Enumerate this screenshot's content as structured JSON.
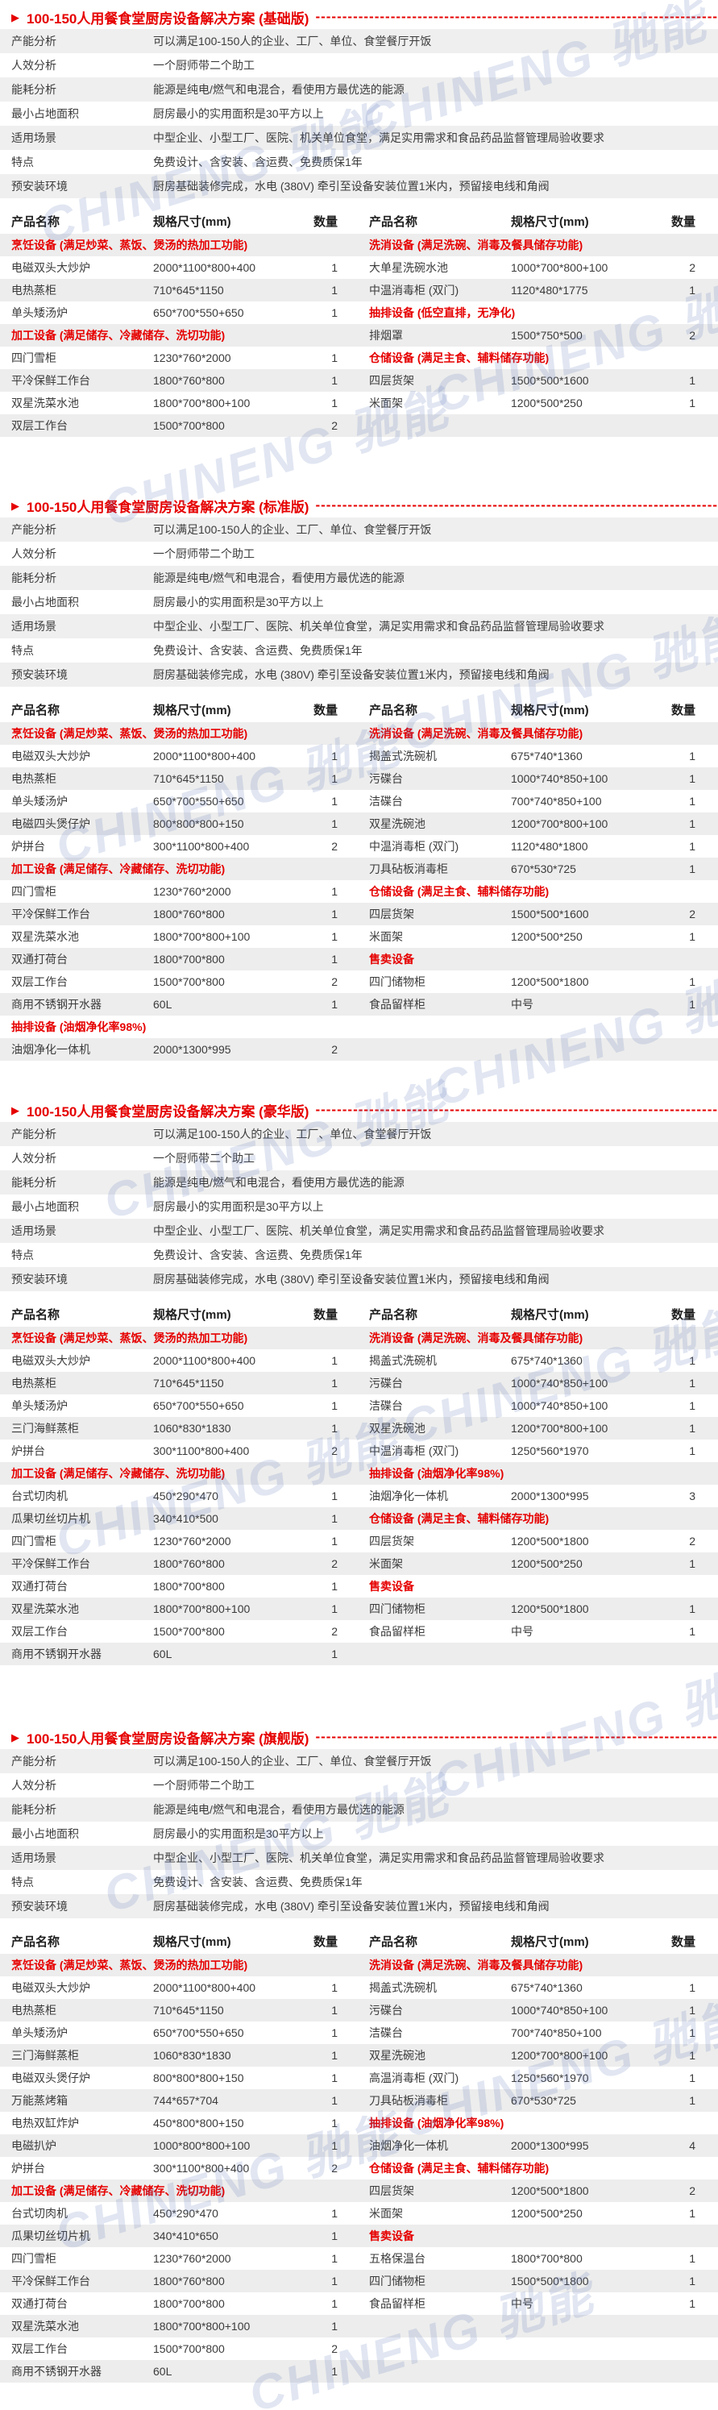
{
  "watermark": {
    "text": "CHINENG 驰能",
    "color": "#5a73b9"
  },
  "title_marker": "▶",
  "title_dashes": "--------------------------------------------------------------------------------------------------------------",
  "table_headers": [
    "产品名称",
    "规格尺寸(mm)",
    "数量"
  ],
  "colors": {
    "accent_red": "#e60000",
    "row_stripe": "#ededed",
    "info_stripe": "#efefef"
  },
  "sections": [
    {
      "title": "100-150人用餐食堂厨房设备解决方案 (基础版)",
      "info": [
        {
          "label": "产能分析",
          "value": "可以满足100-150人的企业、工厂、单位、食堂餐厅开饭"
        },
        {
          "label": "人效分析",
          "value": "一个厨师带二个助工"
        },
        {
          "label": "能耗分析",
          "value": "能源是纯电/燃气和电混合，看使用方最优选的能源"
        },
        {
          "label": "最小占地面积",
          "value": "厨房最小的实用面积是30平方以上"
        },
        {
          "label": "适用场景",
          "value": "中型企业、小型工厂、医院、机关单位食堂，满足实用需求和食品药品监督管理局验收要求"
        },
        {
          "label": "特点",
          "value": "免费设计、含安装、含运费、免费质保1年"
        },
        {
          "label": "预安装环境",
          "value": "厨房基础装修完成，水电 (380V) 牵引至设备安装位置1米内，预留接电线和角阀"
        }
      ],
      "left_rows": [
        {
          "type": "category",
          "text": "烹饪设备 (满足炒菜、蒸饭、煲汤的热加工功能)"
        },
        {
          "type": "item",
          "name": "电磁双头大炒炉",
          "spec": "2000*1100*800+400",
          "qty": "1"
        },
        {
          "type": "item",
          "name": "电热蒸柜",
          "spec": "710*645*1150",
          "qty": "1"
        },
        {
          "type": "item",
          "name": "单头矮汤炉",
          "spec": "650*700*550+650",
          "qty": "1"
        },
        {
          "type": "category",
          "text": "加工设备 (满足储存、冷藏储存、洗切功能)"
        },
        {
          "type": "item",
          "name": "四门雪柜",
          "spec": "1230*760*2000",
          "qty": "1"
        },
        {
          "type": "item",
          "name": "平冷保鲜工作台",
          "spec": "1800*760*800",
          "qty": "1"
        },
        {
          "type": "item",
          "name": "双星洗菜水池",
          "spec": "1800*700*800+100",
          "qty": "1"
        },
        {
          "type": "item",
          "name": "双层工作台",
          "spec": "1500*700*800",
          "qty": "2"
        }
      ],
      "right_rows": [
        {
          "type": "category",
          "text": "洗消设备 (满足洗碗、消毒及餐具储存功能)"
        },
        {
          "type": "item",
          "name": "大单星洗碗水池",
          "spec": "1000*700*800+100",
          "qty": "2"
        },
        {
          "type": "item",
          "name": "中温消毒柜 (双门)",
          "spec": "1120*480*1775",
          "qty": "1"
        },
        {
          "type": "category",
          "text": "抽排设备 (低空直排，无净化)"
        },
        {
          "type": "item",
          "name": "排烟罩",
          "spec": "1500*750*500",
          "qty": "2"
        },
        {
          "type": "category",
          "text": "仓储设备 (满足主食、辅料储存功能)"
        },
        {
          "type": "item",
          "name": "四层货架",
          "spec": "1500*500*1600",
          "qty": "1"
        },
        {
          "type": "item",
          "name": "米面架",
          "spec": "1200*500*250",
          "qty": "1"
        }
      ]
    },
    {
      "title": "100-150人用餐食堂厨房设备解决方案 (标准版)",
      "info": [
        {
          "label": "产能分析",
          "value": "可以满足100-150人的企业、工厂、单位、食堂餐厅开饭"
        },
        {
          "label": "人效分析",
          "value": "一个厨师带二个助工"
        },
        {
          "label": "能耗分析",
          "value": "能源是纯电/燃气和电混合，看使用方最优选的能源"
        },
        {
          "label": "最小占地面积",
          "value": "厨房最小的实用面积是30平方以上"
        },
        {
          "label": "适用场景",
          "value": "中型企业、小型工厂、医院、机关单位食堂，满足实用需求和食品药品监督管理局验收要求"
        },
        {
          "label": "特点",
          "value": "免费设计、含安装、含运费、免费质保1年"
        },
        {
          "label": "预安装环境",
          "value": "厨房基础装修完成，水电 (380V) 牵引至设备安装位置1米内，预留接电线和角阀"
        }
      ],
      "left_rows": [
        {
          "type": "category",
          "text": "烹饪设备 (满足炒菜、蒸饭、煲汤的热加工功能)"
        },
        {
          "type": "item",
          "name": "电磁双头大炒炉",
          "spec": "2000*1100*800+400",
          "qty": "1"
        },
        {
          "type": "item",
          "name": "电热蒸柜",
          "spec": "710*645*1150",
          "qty": "1"
        },
        {
          "type": "item",
          "name": "单头矮汤炉",
          "spec": "650*700*550+650",
          "qty": "1"
        },
        {
          "type": "item",
          "name": "电磁四头煲仔炉",
          "spec": "800*800*800+150",
          "qty": "1"
        },
        {
          "type": "item",
          "name": "炉拼台",
          "spec": "300*1100*800+400",
          "qty": "2"
        },
        {
          "type": "category",
          "text": "加工设备 (满足储存、冷藏储存、洗切功能)"
        },
        {
          "type": "item",
          "name": "四门雪柜",
          "spec": "1230*760*2000",
          "qty": "1"
        },
        {
          "type": "item",
          "name": "平冷保鲜工作台",
          "spec": "1800*760*800",
          "qty": "1"
        },
        {
          "type": "item",
          "name": "双星洗菜水池",
          "spec": "1800*700*800+100",
          "qty": "1"
        },
        {
          "type": "item",
          "name": "双通打荷台",
          "spec": "1800*700*800",
          "qty": "1"
        },
        {
          "type": "item",
          "name": "双层工作台",
          "spec": "1500*700*800",
          "qty": "2"
        },
        {
          "type": "item",
          "name": "商用不锈钢开水器",
          "spec": "60L",
          "qty": "1"
        },
        {
          "type": "category",
          "text": "抽排设备 (油烟净化率98%)"
        },
        {
          "type": "item",
          "name": "油烟净化一体机",
          "spec": "2000*1300*995",
          "qty": "2"
        }
      ],
      "right_rows": [
        {
          "type": "category",
          "text": "洗消设备 (满足洗碗、消毒及餐具储存功能)"
        },
        {
          "type": "item",
          "name": "揭盖式洗碗机",
          "spec": "675*740*1360",
          "qty": "1"
        },
        {
          "type": "item",
          "name": "污碟台",
          "spec": "1000*740*850+100",
          "qty": "1"
        },
        {
          "type": "item",
          "name": "洁碟台",
          "spec": "700*740*850+100",
          "qty": "1"
        },
        {
          "type": "item",
          "name": "双星洗碗池",
          "spec": "1200*700*800+100",
          "qty": "1"
        },
        {
          "type": "item",
          "name": "中温消毒柜 (双门)",
          "spec": "1120*480*1800",
          "qty": "1"
        },
        {
          "type": "item",
          "name": "刀具砧板消毒柜",
          "spec": "670*530*725",
          "qty": "1"
        },
        {
          "type": "category",
          "text": "仓储设备 (满足主食、辅料储存功能)"
        },
        {
          "type": "item",
          "name": "四层货架",
          "spec": "1500*500*1600",
          "qty": "2"
        },
        {
          "type": "item",
          "name": "米面架",
          "spec": "1200*500*250",
          "qty": "1"
        },
        {
          "type": "category",
          "text": "售卖设备"
        },
        {
          "type": "item",
          "name": "四门储物柜",
          "spec": "1200*500*1800",
          "qty": "1"
        },
        {
          "type": "item",
          "name": "食品留样柜",
          "spec": "中号",
          "qty": "1"
        }
      ]
    },
    {
      "title": "100-150人用餐食堂厨房设备解决方案 (豪华版)",
      "info": [
        {
          "label": "产能分析",
          "value": "可以满足100-150人的企业、工厂、单位、食堂餐厅开饭"
        },
        {
          "label": "人效分析",
          "value": "一个厨师带二个助工"
        },
        {
          "label": "能耗分析",
          "value": "能源是纯电/燃气和电混合，看使用方最优选的能源"
        },
        {
          "label": "最小占地面积",
          "value": "厨房最小的实用面积是30平方以上"
        },
        {
          "label": "适用场景",
          "value": "中型企业、小型工厂、医院、机关单位食堂，满足实用需求和食品药品监督管理局验收要求"
        },
        {
          "label": "特点",
          "value": "免费设计、含安装、含运费、免费质保1年"
        },
        {
          "label": "预安装环境",
          "value": "厨房基础装修完成，水电 (380V) 牵引至设备安装位置1米内，预留接电线和角阀"
        }
      ],
      "left_rows": [
        {
          "type": "category",
          "text": "烹饪设备 (满足炒菜、蒸饭、煲汤的热加工功能)"
        },
        {
          "type": "item",
          "name": "电磁双头大炒炉",
          "spec": "2000*1100*800+400",
          "qty": "1"
        },
        {
          "type": "item",
          "name": "电热蒸柜",
          "spec": "710*645*1150",
          "qty": "1"
        },
        {
          "type": "item",
          "name": "单头矮汤炉",
          "spec": "650*700*550+650",
          "qty": "1"
        },
        {
          "type": "item",
          "name": "三门海鲜蒸柜",
          "spec": "1060*830*1830",
          "qty": "1"
        },
        {
          "type": "item",
          "name": "炉拼台",
          "spec": "300*1100*800+400",
          "qty": "2"
        },
        {
          "type": "category",
          "text": "加工设备 (满足储存、冷藏储存、洗切功能)"
        },
        {
          "type": "item",
          "name": "台式切肉机",
          "spec": "450*290*470",
          "qty": "1"
        },
        {
          "type": "item",
          "name": "瓜果切丝切片机",
          "spec": "340*410*500",
          "qty": "1"
        },
        {
          "type": "item",
          "name": "四门雪柜",
          "spec": "1230*760*2000",
          "qty": "1"
        },
        {
          "type": "item",
          "name": "平冷保鲜工作台",
          "spec": "1800*760*800",
          "qty": "2"
        },
        {
          "type": "item",
          "name": "双通打荷台",
          "spec": "1800*700*800",
          "qty": "1"
        },
        {
          "type": "item",
          "name": "双星洗菜水池",
          "spec": "1800*700*800+100",
          "qty": "1"
        },
        {
          "type": "item",
          "name": "双层工作台",
          "spec": "1500*700*800",
          "qty": "2"
        },
        {
          "type": "item",
          "name": "商用不锈钢开水器",
          "spec": "60L",
          "qty": "1"
        }
      ],
      "right_rows": [
        {
          "type": "category",
          "text": "洗消设备 (满足洗碗、消毒及餐具储存功能)"
        },
        {
          "type": "item",
          "name": "揭盖式洗碗机",
          "spec": "675*740*1360",
          "qty": "1"
        },
        {
          "type": "item",
          "name": "污碟台",
          "spec": "1000*740*850+100",
          "qty": "1"
        },
        {
          "type": "item",
          "name": "洁碟台",
          "spec": "1000*740*850+100",
          "qty": "1"
        },
        {
          "type": "item",
          "name": "双星洗碗池",
          "spec": "1200*700*800+100",
          "qty": "1"
        },
        {
          "type": "item",
          "name": "中温消毒柜 (双门)",
          "spec": "1250*560*1970",
          "qty": "1"
        },
        {
          "type": "category",
          "text": "抽排设备 (油烟净化率98%)"
        },
        {
          "type": "item",
          "name": "油烟净化一体机",
          "spec": "2000*1300*995",
          "qty": "3"
        },
        {
          "type": "category",
          "text": "仓储设备 (满足主食、辅料储存功能)"
        },
        {
          "type": "item",
          "name": "四层货架",
          "spec": "1200*500*1800",
          "qty": "2"
        },
        {
          "type": "item",
          "name": "米面架",
          "spec": "1200*500*250",
          "qty": "1"
        },
        {
          "type": "category",
          "text": "售卖设备"
        },
        {
          "type": "item",
          "name": "四门储物柜",
          "spec": "1200*500*1800",
          "qty": "1"
        },
        {
          "type": "item",
          "name": "食品留样柜",
          "spec": "中号",
          "qty": "1"
        }
      ]
    },
    {
      "title": "100-150人用餐食堂厨房设备解决方案 (旗舰版)",
      "info": [
        {
          "label": "产能分析",
          "value": "可以满足100-150人的企业、工厂、单位、食堂餐厅开饭"
        },
        {
          "label": "人效分析",
          "value": "一个厨师带二个助工"
        },
        {
          "label": "能耗分析",
          "value": "能源是纯电/燃气和电混合，看使用方最优选的能源"
        },
        {
          "label": "最小占地面积",
          "value": "厨房最小的实用面积是30平方以上"
        },
        {
          "label": "适用场景",
          "value": "中型企业、小型工厂、医院、机关单位食堂，满足实用需求和食品药品监督管理局验收要求"
        },
        {
          "label": "特点",
          "value": "免费设计、含安装、含运费、免费质保1年"
        },
        {
          "label": "预安装环境",
          "value": "厨房基础装修完成，水电 (380V) 牵引至设备安装位置1米内，预留接电线和角阀"
        }
      ],
      "left_rows": [
        {
          "type": "category",
          "text": "烹饪设备 (满足炒菜、蒸饭、煲汤的热加工功能)"
        },
        {
          "type": "item",
          "name": "电磁双头大炒炉",
          "spec": "2000*1100*800+400",
          "qty": "1"
        },
        {
          "type": "item",
          "name": "电热蒸柜",
          "spec": "710*645*1150",
          "qty": "1"
        },
        {
          "type": "item",
          "name": "单头矮汤炉",
          "spec": "650*700*550+650",
          "qty": "1"
        },
        {
          "type": "item",
          "name": "三门海鲜蒸柜",
          "spec": "1060*830*1830",
          "qty": "1"
        },
        {
          "type": "item",
          "name": "电磁双头煲仔炉",
          "spec": "800*800*800+150",
          "qty": "1"
        },
        {
          "type": "item",
          "name": "万能蒸烤箱",
          "spec": "744*657*704",
          "qty": "1"
        },
        {
          "type": "item",
          "name": "电热双缸炸炉",
          "spec": "450*800*800+150",
          "qty": "1"
        },
        {
          "type": "item",
          "name": "电磁扒炉",
          "spec": "1000*800*800+100",
          "qty": "1"
        },
        {
          "type": "item",
          "name": "炉拼台",
          "spec": "300*1100*800+400",
          "qty": "2"
        },
        {
          "type": "category",
          "text": "加工设备 (满足储存、冷藏储存、洗切功能)"
        },
        {
          "type": "item",
          "name": "台式切肉机",
          "spec": "450*290*470",
          "qty": "1"
        },
        {
          "type": "item",
          "name": "瓜果切丝切片机",
          "spec": "340*410*650",
          "qty": "1"
        },
        {
          "type": "item",
          "name": "四门雪柜",
          "spec": "1230*760*2000",
          "qty": "1"
        },
        {
          "type": "item",
          "name": "平冷保鲜工作台",
          "spec": "1800*760*800",
          "qty": "1"
        },
        {
          "type": "item",
          "name": "双通打荷台",
          "spec": "1800*700*800",
          "qty": "1"
        },
        {
          "type": "item",
          "name": "双星洗菜水池",
          "spec": "1800*700*800+100",
          "qty": "1"
        },
        {
          "type": "item",
          "name": "双层工作台",
          "spec": "1500*700*800",
          "qty": "2"
        },
        {
          "type": "item",
          "name": "商用不锈钢开水器",
          "spec": "60L",
          "qty": "1"
        }
      ],
      "right_rows": [
        {
          "type": "category",
          "text": "洗消设备 (满足洗碗、消毒及餐具储存功能)"
        },
        {
          "type": "item",
          "name": "揭盖式洗碗机",
          "spec": "675*740*1360",
          "qty": "1"
        },
        {
          "type": "item",
          "name": "污碟台",
          "spec": "1000*740*850+100",
          "qty": "1"
        },
        {
          "type": "item",
          "name": "洁碟台",
          "spec": "700*740*850+100",
          "qty": "1"
        },
        {
          "type": "item",
          "name": "双星洗碗池",
          "spec": "1200*700*800+100",
          "qty": "1"
        },
        {
          "type": "item",
          "name": "高温消毒柜 (双门)",
          "spec": "1250*560*1970",
          "qty": "1"
        },
        {
          "type": "item",
          "name": "刀具砧板消毒柜",
          "spec": "670*530*725",
          "qty": "1"
        },
        {
          "type": "category",
          "text": "抽排设备 (油烟净化率98%)"
        },
        {
          "type": "item",
          "name": "油烟净化一体机",
          "spec": "2000*1300*995",
          "qty": "4"
        },
        {
          "type": "category",
          "text": "仓储设备 (满足主食、辅料储存功能)"
        },
        {
          "type": "item",
          "name": "四层货架",
          "spec": "1200*500*1800",
          "qty": "2"
        },
        {
          "type": "item",
          "name": "米面架",
          "spec": "1200*500*250",
          "qty": "1"
        },
        {
          "type": "category",
          "text": "售卖设备"
        },
        {
          "type": "item",
          "name": "五格保温台",
          "spec": "1800*700*800",
          "qty": "1"
        },
        {
          "type": "item",
          "name": "四门储物柜",
          "spec": "1500*500*1800",
          "qty": "1"
        },
        {
          "type": "item",
          "name": "食品留样柜",
          "spec": "中号",
          "qty": "1"
        }
      ]
    }
  ]
}
